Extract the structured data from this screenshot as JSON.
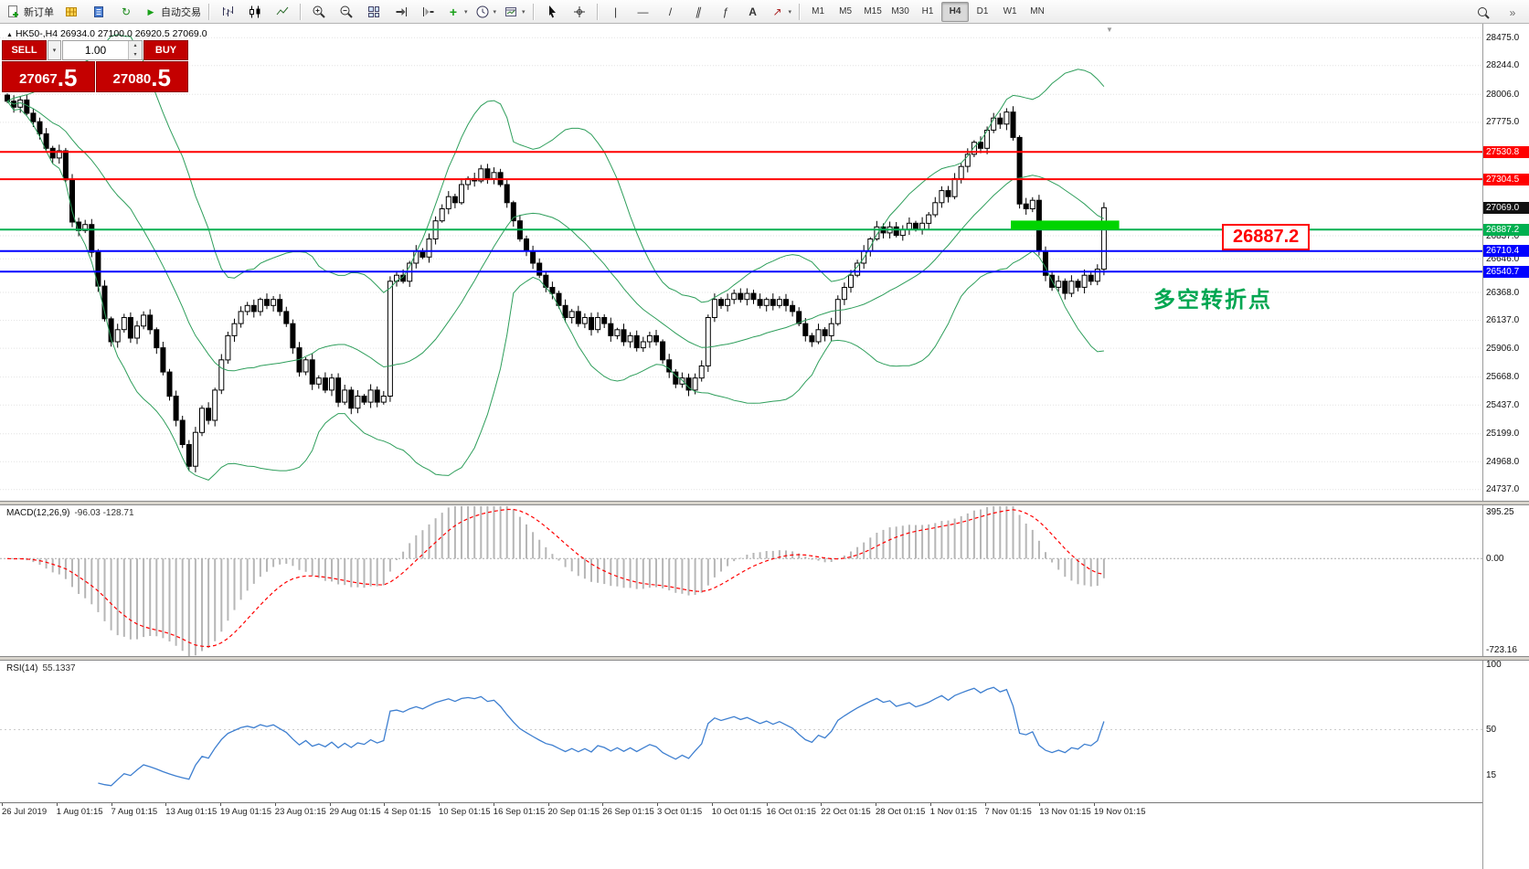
{
  "toolbar": {
    "groups": [
      {
        "items": [
          {
            "name": "new-order",
            "icon": "doc-plus",
            "label": "新订单"
          },
          {
            "name": "chart-window",
            "icon": "yellow-grid"
          },
          {
            "name": "market-watch",
            "icon": "blue-book"
          },
          {
            "name": "refresh",
            "icon": "refresh"
          },
          {
            "name": "auto-trading",
            "icon": "play",
            "label": "自动交易"
          }
        ]
      },
      {
        "items": [
          {
            "name": "bar-chart",
            "icon": "bars"
          },
          {
            "name": "candlestick-chart",
            "icon": "candles"
          },
          {
            "name": "line-chart",
            "icon": "line"
          }
        ]
      },
      {
        "items": [
          {
            "name": "zoom-in",
            "icon": "zoom-in"
          },
          {
            "name": "zoom-out",
            "icon": "zoom-out"
          },
          {
            "name": "tile-windows",
            "icon": "tiles"
          },
          {
            "name": "auto-scroll",
            "icon": "scroll-end"
          },
          {
            "name": "chart-shift",
            "icon": "shift"
          },
          {
            "name": "indicators",
            "icon": "indicator_plus",
            "caret": true
          },
          {
            "name": "periods",
            "icon": "clock",
            "caret": true
          },
          {
            "name": "templates",
            "icon": "template",
            "caret": true
          }
        ]
      },
      {
        "items": [
          {
            "name": "cursor",
            "icon": "cursor"
          },
          {
            "name": "crosshair",
            "icon": "crosshair"
          }
        ]
      },
      {
        "items": [
          {
            "name": "vertical-line",
            "icon": "vline"
          },
          {
            "name": "horizontal-line",
            "icon": "hline"
          },
          {
            "name": "trendline",
            "icon": "tline"
          },
          {
            "name": "channel",
            "icon": "channel"
          },
          {
            "name": "fibonacci",
            "icon": "fib"
          },
          {
            "name": "text-tool",
            "icon": "text_tool"
          },
          {
            "name": "arrow-shapes",
            "icon": "arrows",
            "caret": true
          }
        ]
      }
    ],
    "timeframes": [
      "M1",
      "M5",
      "M15",
      "M30",
      "H1",
      "H4",
      "D1",
      "W1",
      "MN"
    ],
    "active_timeframe": "H4",
    "right_icons": [
      {
        "name": "search",
        "icon": "search"
      },
      {
        "name": "toolbar-overflow",
        "icon": "overflow"
      }
    ]
  },
  "icons": {
    "refresh": "↻",
    "play": "▶",
    "indicator_plus": "+",
    "vline": "|",
    "hline": "—",
    "tline": "/",
    "channel": "∥",
    "fib": "ƒ",
    "text_tool": "A",
    "arrows": "↗",
    "caret": "▾",
    "spin_up": "▴",
    "spin_down": "▾",
    "overflow": "»",
    "header_marker": "▲",
    "scroll_marker": "▼"
  },
  "chart_header": {
    "text": "HK50-,H4 26934.0 27100.0 26920.5 27069.0"
  },
  "trade_panel": {
    "sell_label": "SELL",
    "buy_label": "BUY",
    "volume": "1.00",
    "sell_price_main": "27067",
    "sell_price_frac": ".5",
    "buy_price_main": "27080",
    "buy_price_frac": ".5"
  },
  "annotations": {
    "level_callout": "26887.2",
    "note_text": "多空转折点"
  },
  "indicators": {
    "macd_label": "MACD(12,26,9)",
    "macd_values": "-96.03 -128.71",
    "rsi_label": "RSI(14)",
    "rsi_value": "55.1337"
  },
  "chart_data": {
    "type": "candlestick",
    "symbol": "HK50-",
    "timeframe": "H4",
    "price_axis": {
      "max": 28560,
      "min": 24660,
      "ticks": [
        {
          "v": 28475,
          "t": "28475.0"
        },
        {
          "v": 28244,
          "t": "28244.0"
        },
        {
          "v": 28006,
          "t": "28006.0"
        },
        {
          "v": 27775,
          "t": "27775.0"
        },
        {
          "v": 26837,
          "t": "26837.0"
        },
        {
          "v": 26646,
          "t": "26646.0"
        },
        {
          "v": 26368,
          "t": "26368.0"
        },
        {
          "v": 26137,
          "t": "26137.0"
        },
        {
          "v": 25906,
          "t": "25906.0"
        },
        {
          "v": 25668,
          "t": "25668.0"
        },
        {
          "v": 25437,
          "t": "25437.0"
        },
        {
          "v": 25199,
          "t": "25199.0"
        },
        {
          "v": 24968,
          "t": "24968.0"
        },
        {
          "v": 24737,
          "t": "24737.0"
        }
      ]
    },
    "current_price": {
      "value": 27069.0,
      "label": "27069.0",
      "color": "#111111"
    },
    "levels": [
      {
        "value": 27530.8,
        "label": "27530.8",
        "color": "#ff0000"
      },
      {
        "value": 27304.5,
        "label": "27304.5",
        "color": "#ff0000"
      },
      {
        "value": 26887.2,
        "label": "26887.2",
        "color": "#00b050"
      },
      {
        "value": 26710.4,
        "label": "26710.4",
        "color": "#0000ff"
      },
      {
        "value": 26540.7,
        "label": "26540.7",
        "color": "#0000ff"
      }
    ],
    "highlight_rect": {
      "from_index": 155,
      "to_index": 171,
      "price_top": 26962,
      "price_bottom": 26887,
      "color": "#00d400"
    },
    "first_open": 28000,
    "closes": [
      27950,
      27900,
      27960,
      27850,
      27780,
      27680,
      27560,
      27480,
      27540,
      27300,
      26950,
      26880,
      26930,
      26700,
      26420,
      26150,
      25960,
      26060,
      26160,
      25990,
      26090,
      26180,
      26060,
      25910,
      25710,
      25510,
      25310,
      25110,
      24930,
      25210,
      25410,
      25310,
      25560,
      25810,
      26010,
      26110,
      26210,
      26260,
      26210,
      26310,
      26260,
      26310,
      26210,
      26110,
      25910,
      25710,
      25810,
      25610,
      25660,
      25560,
      25660,
      25460,
      25560,
      25410,
      25510,
      25460,
      25560,
      25460,
      25510,
      26460,
      26510,
      26460,
      26610,
      26710,
      26660,
      26810,
      26960,
      27060,
      27160,
      27110,
      27260,
      27310,
      27290,
      27390,
      27310,
      27360,
      27260,
      27110,
      26960,
      26810,
      26710,
      26610,
      26510,
      26410,
      26360,
      26260,
      26160,
      26210,
      26110,
      26160,
      26060,
      26160,
      26110,
      26010,
      26060,
      25960,
      26010,
      25910,
      25960,
      26010,
      25960,
      25810,
      25710,
      25610,
      25660,
      25560,
      25660,
      25760,
      26160,
      26310,
      26260,
      26310,
      26360,
      26310,
      26360,
      26310,
      26260,
      26310,
      26260,
      26310,
      26260,
      26210,
      26110,
      26010,
      25960,
      26060,
      26010,
      26110,
      26310,
      26410,
      26510,
      26610,
      26710,
      26810,
      26910,
      26860,
      26910,
      26840,
      26890,
      26940,
      26890,
      26940,
      27010,
      27110,
      27210,
      27160,
      27310,
      27410,
      27510,
      27610,
      27560,
      27710,
      27810,
      27760,
      27860,
      27650,
      27100,
      27060,
      27130,
      26710,
      26510,
      26410,
      26460,
      26360,
      26460,
      26410,
      26510,
      26460,
      26560,
      27069
    ],
    "overlays": {
      "bollinger": {
        "period": 20,
        "deviation": 2,
        "color": "#2e9e5b"
      }
    },
    "macd": {
      "params": "12,26,9",
      "scale_max": 395.25,
      "scale_min": -723.16,
      "axis_labels": [
        {
          "v": "top",
          "t": "395.25"
        },
        {
          "v": "zero",
          "t": "0.00"
        },
        {
          "v": "bottom",
          "t": "-723.16"
        }
      ],
      "histogram_color": "#b6b6b6",
      "signal_color": "#ff0000"
    },
    "rsi": {
      "period": 14,
      "axis_labels": [
        {
          "v": 100,
          "t": "100"
        },
        {
          "v": 50,
          "t": "50"
        },
        {
          "v": 15,
          "t": "15"
        }
      ],
      "color": "#3e7fd0"
    },
    "x_labels": [
      "26 Jul 2019",
      "1 Aug 01:15",
      "7 Aug 01:15",
      "13 Aug 01:15",
      "19 Aug 01:15",
      "23 Aug 01:15",
      "29 Aug 01:15",
      "4 Sep 01:15",
      "10 Sep 01:15",
      "16 Sep 01:15",
      "20 Sep 01:15",
      "26 Sep 01:15",
      "3 Oct 01:15",
      "10 Oct 01:15",
      "16 Oct 01:15",
      "22 Oct 01:15",
      "28 Oct 01:15",
      "1 Nov 01:15",
      "7 Nov 01:15",
      "13 Nov 01:15",
      "19 Nov 01:15"
    ]
  }
}
